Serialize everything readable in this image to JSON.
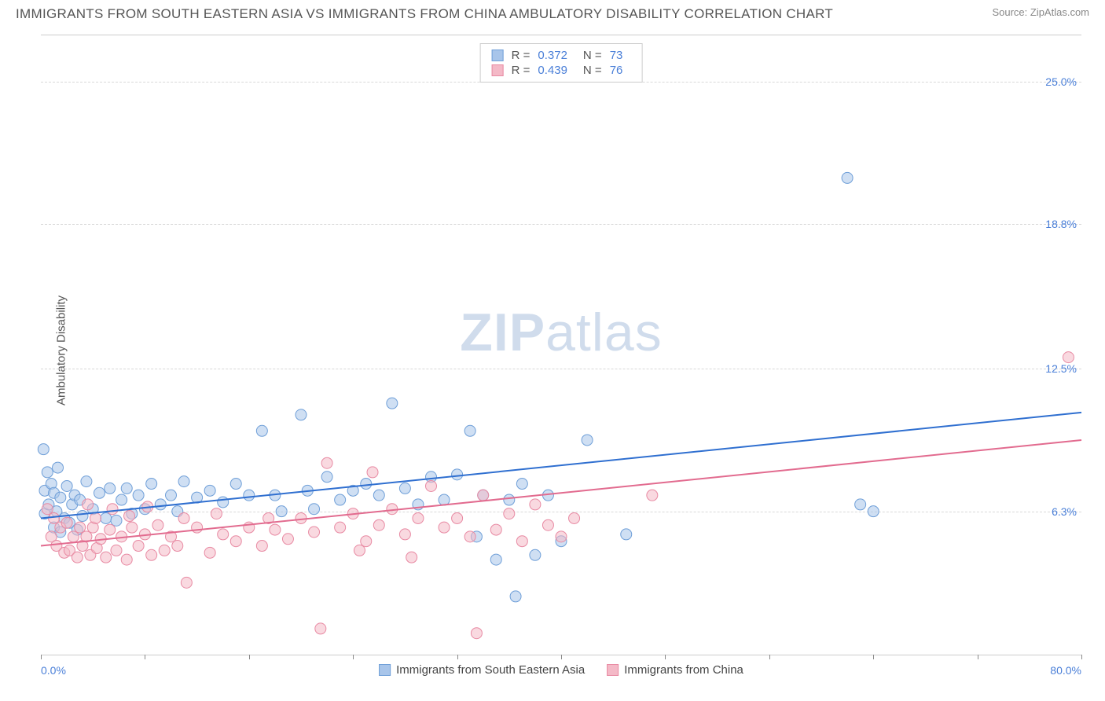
{
  "title": "IMMIGRANTS FROM SOUTH EASTERN ASIA VS IMMIGRANTS FROM CHINA AMBULATORY DISABILITY CORRELATION CHART",
  "source": "Source: ZipAtlas.com",
  "watermark_a": "ZIP",
  "watermark_b": "atlas",
  "y_axis_label": "Ambulatory Disability",
  "chart": {
    "type": "scatter-with-regression",
    "background_color": "#ffffff",
    "grid_color": "#d8d8d8",
    "axis_color": "#cccccc",
    "tick_label_color": "#4a7fd8",
    "text_color": "#555555",
    "xlim": [
      0,
      80
    ],
    "ylim": [
      0,
      27
    ],
    "xtick_positions": [
      0,
      8,
      16,
      24,
      32,
      40,
      48,
      56,
      64,
      72,
      80
    ],
    "yticks": [
      {
        "v": 6.3,
        "label": "6.3%"
      },
      {
        "v": 12.5,
        "label": "12.5%"
      },
      {
        "v": 18.8,
        "label": "18.8%"
      },
      {
        "v": 25.0,
        "label": "25.0%"
      }
    ],
    "x_min_label": "0.0%",
    "x_max_label": "80.0%"
  },
  "series": [
    {
      "key": "sea",
      "label": "Immigrants from South Eastern Asia",
      "fill": "#a8c5ea",
      "stroke": "#6f9fd8",
      "line_color": "#2f6fd0",
      "fill_opacity": 0.55,
      "marker_r": 7,
      "r_label": "R =",
      "r_value": "0.372",
      "n_label": "N =",
      "n_value": "73",
      "reg_line": {
        "x1": 0,
        "y1": 6.0,
        "x2": 80,
        "y2": 10.6
      },
      "points": [
        [
          0.3,
          7.2
        ],
        [
          0.3,
          6.2
        ],
        [
          0.5,
          8.0
        ],
        [
          0.6,
          6.6
        ],
        [
          0.8,
          7.5
        ],
        [
          1.0,
          5.6
        ],
        [
          1.0,
          7.1
        ],
        [
          1.2,
          6.3
        ],
        [
          1.3,
          8.2
        ],
        [
          1.5,
          5.4
        ],
        [
          1.5,
          6.9
        ],
        [
          1.8,
          6.0
        ],
        [
          2.0,
          7.4
        ],
        [
          2.2,
          5.8
        ],
        [
          2.4,
          6.6
        ],
        [
          2.6,
          7.0
        ],
        [
          2.8,
          5.5
        ],
        [
          3.0,
          6.8
        ],
        [
          3.2,
          6.1
        ],
        [
          3.5,
          7.6
        ],
        [
          4.0,
          6.4
        ],
        [
          4.5,
          7.1
        ],
        [
          5.0,
          6.0
        ],
        [
          5.3,
          7.3
        ],
        [
          5.8,
          5.9
        ],
        [
          6.2,
          6.8
        ],
        [
          6.6,
          7.3
        ],
        [
          7.0,
          6.2
        ],
        [
          7.5,
          7.0
        ],
        [
          8.0,
          6.4
        ],
        [
          8.5,
          7.5
        ],
        [
          9.2,
          6.6
        ],
        [
          10.0,
          7.0
        ],
        [
          10.5,
          6.3
        ],
        [
          11.0,
          7.6
        ],
        [
          12.0,
          6.9
        ],
        [
          13.0,
          7.2
        ],
        [
          14.0,
          6.7
        ],
        [
          15.0,
          7.5
        ],
        [
          16.0,
          7.0
        ],
        [
          17.0,
          9.8
        ],
        [
          18.0,
          7.0
        ],
        [
          18.5,
          6.3
        ],
        [
          20.0,
          10.5
        ],
        [
          20.5,
          7.2
        ],
        [
          21.0,
          6.4
        ],
        [
          22.0,
          7.8
        ],
        [
          23.0,
          6.8
        ],
        [
          24.0,
          7.2
        ],
        [
          25.0,
          7.5
        ],
        [
          26.0,
          7.0
        ],
        [
          27.0,
          11.0
        ],
        [
          28.0,
          7.3
        ],
        [
          29.0,
          6.6
        ],
        [
          30.0,
          7.8
        ],
        [
          31.0,
          6.8
        ],
        [
          32.0,
          7.9
        ],
        [
          33.0,
          9.8
        ],
        [
          33.5,
          5.2
        ],
        [
          34.0,
          7.0
        ],
        [
          35.0,
          4.2
        ],
        [
          36.0,
          6.8
        ],
        [
          36.5,
          2.6
        ],
        [
          37.0,
          7.5
        ],
        [
          38.0,
          4.4
        ],
        [
          39.0,
          7.0
        ],
        [
          40.0,
          5.0
        ],
        [
          42.0,
          9.4
        ],
        [
          45.0,
          5.3
        ],
        [
          62.0,
          20.8
        ],
        [
          63.0,
          6.6
        ],
        [
          64.0,
          6.3
        ],
        [
          0.2,
          9.0
        ]
      ]
    },
    {
      "key": "china",
      "label": "Immigrants from China",
      "fill": "#f4b9c7",
      "stroke": "#e88aa3",
      "line_color": "#e26b8f",
      "fill_opacity": 0.55,
      "marker_r": 7,
      "r_label": "R =",
      "r_value": "0.439",
      "n_label": "N =",
      "n_value": "76",
      "reg_line": {
        "x1": 0,
        "y1": 4.8,
        "x2": 80,
        "y2": 9.4
      },
      "points": [
        [
          0.5,
          6.4
        ],
        [
          0.8,
          5.2
        ],
        [
          1.0,
          6.0
        ],
        [
          1.2,
          4.8
        ],
        [
          1.5,
          5.6
        ],
        [
          1.8,
          4.5
        ],
        [
          2.0,
          5.8
        ],
        [
          2.2,
          4.6
        ],
        [
          2.5,
          5.2
        ],
        [
          2.8,
          4.3
        ],
        [
          3.0,
          5.6
        ],
        [
          3.2,
          4.8
        ],
        [
          3.5,
          5.2
        ],
        [
          3.8,
          4.4
        ],
        [
          4.0,
          5.6
        ],
        [
          4.3,
          4.7
        ],
        [
          4.6,
          5.1
        ],
        [
          5.0,
          4.3
        ],
        [
          5.3,
          5.5
        ],
        [
          5.8,
          4.6
        ],
        [
          6.2,
          5.2
        ],
        [
          6.6,
          4.2
        ],
        [
          7.0,
          5.6
        ],
        [
          7.5,
          4.8
        ],
        [
          8.0,
          5.3
        ],
        [
          8.5,
          4.4
        ],
        [
          9.0,
          5.7
        ],
        [
          9.5,
          4.6
        ],
        [
          10.0,
          5.2
        ],
        [
          10.5,
          4.8
        ],
        [
          11.2,
          3.2
        ],
        [
          12.0,
          5.6
        ],
        [
          13.0,
          4.5
        ],
        [
          14.0,
          5.3
        ],
        [
          15.0,
          5.0
        ],
        [
          16.0,
          5.6
        ],
        [
          17.0,
          4.8
        ],
        [
          18.0,
          5.5
        ],
        [
          19.0,
          5.1
        ],
        [
          20.0,
          6.0
        ],
        [
          21.0,
          5.4
        ],
        [
          21.5,
          1.2
        ],
        [
          22.0,
          8.4
        ],
        [
          23.0,
          5.6
        ],
        [
          24.0,
          6.2
        ],
        [
          25.0,
          5.0
        ],
        [
          25.5,
          8.0
        ],
        [
          26.0,
          5.7
        ],
        [
          27.0,
          6.4
        ],
        [
          28.0,
          5.3
        ],
        [
          28.5,
          4.3
        ],
        [
          29.0,
          6.0
        ],
        [
          30.0,
          7.4
        ],
        [
          31.0,
          5.6
        ],
        [
          32.0,
          6.0
        ],
        [
          33.0,
          5.2
        ],
        [
          33.5,
          1.0
        ],
        [
          34.0,
          7.0
        ],
        [
          35.0,
          5.5
        ],
        [
          36.0,
          6.2
        ],
        [
          37.0,
          5.0
        ],
        [
          38.0,
          6.6
        ],
        [
          39.0,
          5.7
        ],
        [
          40.0,
          5.2
        ],
        [
          41.0,
          6.0
        ],
        [
          47.0,
          7.0
        ],
        [
          79.0,
          13.0
        ],
        [
          3.6,
          6.6
        ],
        [
          4.2,
          6.0
        ],
        [
          5.5,
          6.4
        ],
        [
          6.8,
          6.1
        ],
        [
          8.2,
          6.5
        ],
        [
          11.0,
          6.0
        ],
        [
          13.5,
          6.2
        ],
        [
          17.5,
          6.0
        ],
        [
          24.5,
          4.6
        ]
      ]
    }
  ]
}
